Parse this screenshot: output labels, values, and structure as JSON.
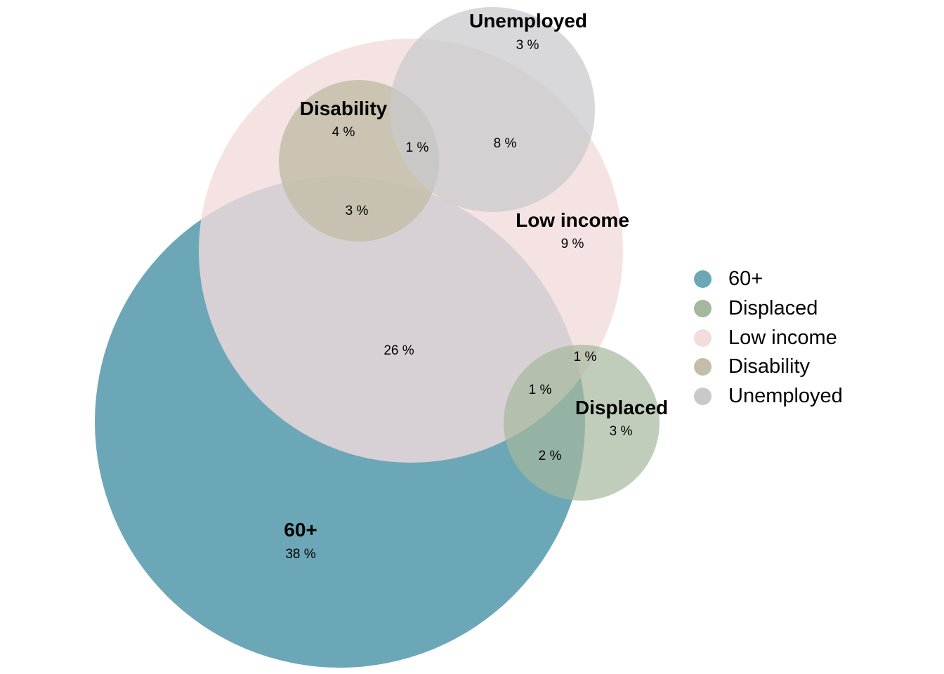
{
  "sets": [
    {
      "id": "sixty",
      "name": "60+",
      "percent": "38 %",
      "color": "#6ca7b8"
    },
    {
      "id": "displaced",
      "name": "Displaced",
      "percent": "3 %",
      "color": "#a5b89d"
    },
    {
      "id": "lowincome",
      "name": "Low income",
      "percent": "9 %",
      "color": "#f2dcdc"
    },
    {
      "id": "disability",
      "name": "Disability",
      "percent": "4 %",
      "color": "#c3bea9"
    },
    {
      "id": "unemployed",
      "name": "Unemployed",
      "percent": "3 %",
      "color": "#c9c9cc"
    }
  ],
  "intersections": [
    {
      "id": "sixty-lowincome",
      "sets": [
        "60+",
        "Low income"
      ],
      "percent": "26 %"
    },
    {
      "id": "disability-lowincome-unemployed",
      "sets": [
        "Disability",
        "Low income",
        "Unemployed"
      ],
      "percent": "1 %"
    },
    {
      "id": "lowincome-unemployed",
      "sets": [
        "Low income",
        "Unemployed"
      ],
      "percent": "8 %"
    },
    {
      "id": "sixty-lowincome-disability",
      "sets": [
        "60+",
        "Low income",
        "Disability"
      ],
      "percent": "3 %"
    },
    {
      "id": "lowincome-displaced",
      "sets": [
        "Low income",
        "Displaced"
      ],
      "percent": "1 %"
    },
    {
      "id": "sixty-lowincome-displaced",
      "sets": [
        "60+",
        "Low income",
        "Displaced"
      ],
      "percent": "1 %"
    },
    {
      "id": "sixty-displaced",
      "sets": [
        "60+",
        "Displaced"
      ],
      "percent": "2 %"
    }
  ],
  "legend": [
    {
      "label": "60+",
      "color": "#6ca7b8"
    },
    {
      "label": "Displaced",
      "color": "#a5b89d"
    },
    {
      "label": "Low income",
      "color": "#f2dcdc"
    },
    {
      "label": "Disability",
      "color": "#c3bea9"
    },
    {
      "label": "Unemployed",
      "color": "#c9c9cc"
    }
  ]
}
